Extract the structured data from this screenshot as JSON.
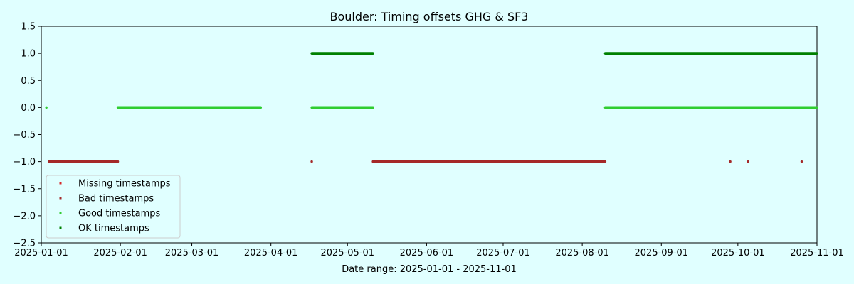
{
  "chart_data": {
    "type": "scatter",
    "title": "Boulder: Timing offsets GHG & SF3",
    "xlabel": "Date range: 2025-01-01 - 2025-11-01",
    "ylabel": "",
    "xlim": [
      "2025-01-01",
      "2025-11-01"
    ],
    "ylim": [
      -2.5,
      1.5
    ],
    "yticks": [
      "1.5",
      "1.0",
      "0.5",
      "0.0",
      "−0.5",
      "−1.0",
      "−1.5",
      "−2.0",
      "−2.5"
    ],
    "xticks": [
      "2025-01-01",
      "2025-02-01",
      "2025-03-01",
      "2025-04-01",
      "2025-05-01",
      "2025-06-01",
      "2025-07-01",
      "2025-08-01",
      "2025-09-01",
      "2025-10-01",
      "2025-11-01"
    ],
    "grid": false,
    "legend_position": "lower-left",
    "series": [
      {
        "name": "Missing timestamps",
        "color": "#d62728",
        "points": [],
        "ranges": []
      },
      {
        "name": "Bad timestamps",
        "color": "#a52a2a",
        "points": [
          {
            "x": "2025-04-17",
            "y": -1.0
          },
          {
            "x": "2025-09-28",
            "y": -1.0
          },
          {
            "x": "2025-10-05",
            "y": -1.0
          },
          {
            "x": "2025-10-26",
            "y": -1.0
          }
        ],
        "ranges": [
          {
            "x_start": "2025-01-04",
            "x_end": "2025-01-31",
            "y": -1.0
          },
          {
            "x_start": "2025-05-11",
            "x_end": "2025-08-10",
            "y": -1.0
          }
        ]
      },
      {
        "name": "Good timestamps",
        "color": "#32cd32",
        "points": [
          {
            "x": "2025-01-03",
            "y": 0.0
          }
        ],
        "ranges": [
          {
            "x_start": "2025-01-31",
            "x_end": "2025-03-28",
            "y": 0.0
          },
          {
            "x_start": "2025-04-17",
            "x_end": "2025-05-11",
            "y": 0.0
          },
          {
            "x_start": "2025-08-10",
            "x_end": "2025-11-01",
            "y": 0.0
          }
        ]
      },
      {
        "name": "OK timestamps",
        "color": "#008000",
        "points": [],
        "ranges": [
          {
            "x_start": "2025-04-17",
            "x_end": "2025-05-11",
            "y": 1.0
          },
          {
            "x_start": "2025-08-10",
            "x_end": "2025-11-01",
            "y": 1.0
          }
        ]
      }
    ]
  }
}
